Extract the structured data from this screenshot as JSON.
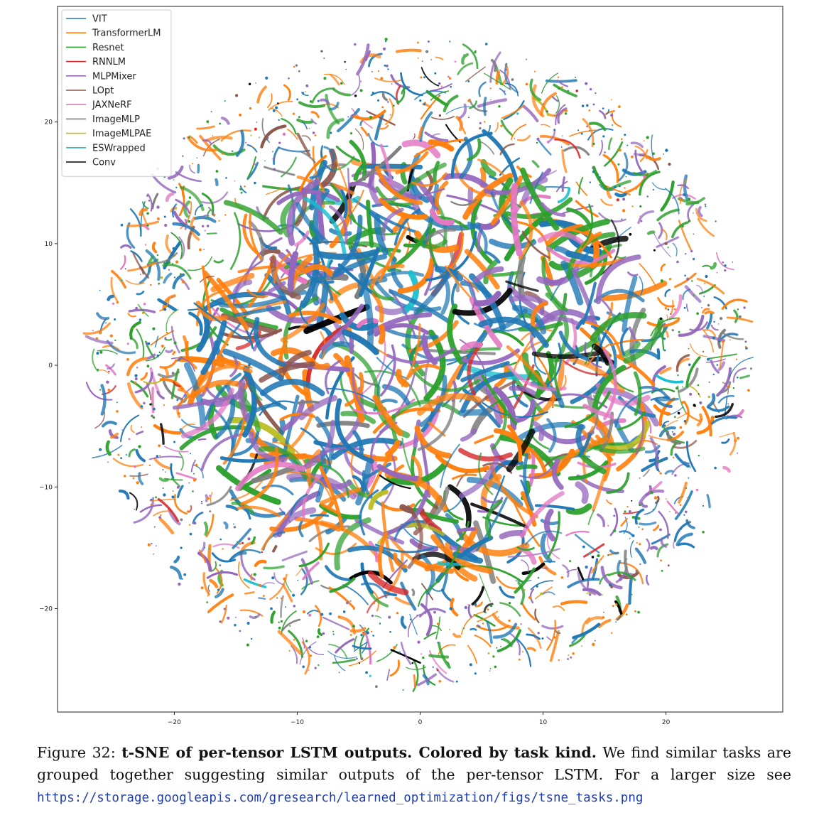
{
  "chart_data": {
    "type": "scatter",
    "title": "",
    "xlabel": "",
    "ylabel": "",
    "xlim": [
      -29.5,
      29.5
    ],
    "ylim": [
      -28.5,
      29.5
    ],
    "xticks": [
      -20,
      -10,
      0,
      10,
      20
    ],
    "yticks": [
      20,
      10,
      0,
      -10,
      -20
    ],
    "xtick_labels": [
      "−20",
      "−10",
      "0",
      "10",
      "20"
    ],
    "ytick_labels": [
      "20",
      "10",
      "0",
      "−10",
      "−20"
    ],
    "grid": false,
    "legend_position": "top-left",
    "point_cloud": {
      "center": [
        0,
        0
      ],
      "radius": 26.5
    },
    "series": [
      {
        "name": "VIT",
        "color": "#1f77b4"
      },
      {
        "name": "TransformerLM",
        "color": "#ff7f0e"
      },
      {
        "name": "Resnet",
        "color": "#2ca02c"
      },
      {
        "name": "RNNLM",
        "color": "#d62728"
      },
      {
        "name": "MLPMixer",
        "color": "#9467bd"
      },
      {
        "name": "LOpt",
        "color": "#8c564b"
      },
      {
        "name": "JAXNeRF",
        "color": "#e377c2"
      },
      {
        "name": "ImageMLP",
        "color": "#7f7f7f"
      },
      {
        "name": "ImageMLPAE",
        "color": "#bcbd22"
      },
      {
        "name": "ESWrapped",
        "color": "#17becf"
      },
      {
        "name": "Conv",
        "color": "#000000"
      }
    ]
  },
  "caption": {
    "figure_label": "Figure 32:",
    "bold_text": "t-SNE of per-tensor LSTM outputs. Colored by task kind.",
    "body_text": "We find similar tasks are grouped together suggesting similar outputs of the per-tensor LSTM. For a larger size see",
    "url": "https://storage.googleapis.com/gresearch/learned_optimization/figs/tsne_tasks.png"
  }
}
